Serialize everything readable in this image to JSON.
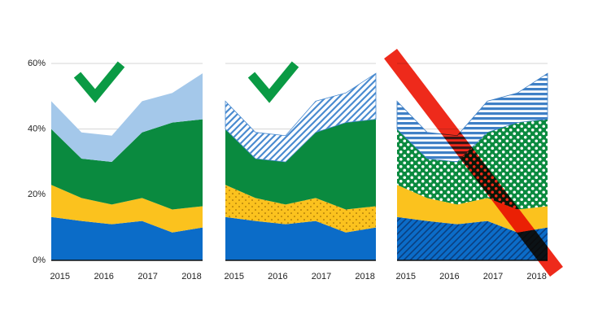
{
  "chart_data": [
    {
      "type": "area",
      "stacked": true,
      "grid": true,
      "x": [
        2014.8,
        2015.49,
        2016.18,
        2016.87,
        2017.56,
        2018.25
      ],
      "xlim": [
        2014.8,
        2018.25
      ],
      "xticks": [
        2015,
        2016,
        2017,
        2018
      ],
      "ylim": [
        0,
        60
      ],
      "yticks": [
        {
          "value": 0,
          "label": "0%"
        },
        {
          "value": 20,
          "label": "20%"
        },
        {
          "value": 40,
          "label": "40%"
        },
        {
          "value": 60,
          "label": "60%"
        }
      ],
      "series": [
        {
          "color": "#0b6cc8",
          "values": [
            13.2,
            12,
            11,
            12,
            8.5,
            10
          ]
        },
        {
          "color": "#fbc21e",
          "values": [
            9.8,
            7,
            6,
            7,
            7,
            6.5
          ]
        },
        {
          "color": "#0a8a3f",
          "values": [
            17,
            12,
            13,
            20,
            26.5,
            26.5
          ]
        },
        {
          "color": "#a4c8ea",
          "values": [
            8.5,
            8,
            8,
            9.5,
            9,
            14
          ]
        }
      ]
    },
    {
      "type": "area",
      "stacked": true,
      "x": [
        2014.8,
        2015.49,
        2016.18,
        2016.87,
        2017.56,
        2018.25
      ],
      "xlim": [
        2014.8,
        2018.25
      ],
      "xticks": [
        2015,
        2016,
        2017,
        2018
      ],
      "ylim": [
        0,
        60
      ],
      "series": [
        {
          "color": "#0b6cc8",
          "values": [
            13.2,
            12,
            11,
            12,
            8.5,
            10
          ]
        },
        {
          "color": "#fbc21e",
          "pattern": "dots",
          "values": [
            9.8,
            7,
            6,
            7,
            7,
            6.5
          ]
        },
        {
          "color": "#0a8a3f",
          "values": [
            17,
            12,
            13,
            20,
            26.5,
            26.5
          ]
        },
        {
          "color": "#4a8bd0",
          "pattern": "hatch",
          "values": [
            8.5,
            8,
            8,
            9.5,
            9,
            14
          ]
        }
      ]
    },
    {
      "type": "area",
      "stacked": true,
      "x": [
        2014.8,
        2015.49,
        2016.18,
        2016.87,
        2017.56,
        2018.25
      ],
      "xlim": [
        2014.8,
        2018.25
      ],
      "xticks": [
        2015,
        2016,
        2017,
        2018
      ],
      "ylim": [
        0,
        60
      ],
      "series": [
        {
          "color": "#0b6cc8",
          "pattern": "diag",
          "values": [
            13.2,
            12,
            11,
            12,
            8.5,
            10
          ]
        },
        {
          "color": "#fbc21e",
          "values": [
            9.8,
            7,
            6,
            7,
            7,
            6.5
          ]
        },
        {
          "color": "#0a8a3f",
          "pattern": "circles",
          "values": [
            17,
            12,
            13,
            20,
            26.5,
            26.5
          ]
        },
        {
          "color": "#3f80c6",
          "pattern": "hlines",
          "values": [
            8.5,
            8,
            8,
            9.5,
            9,
            14
          ]
        }
      ]
    }
  ]
}
